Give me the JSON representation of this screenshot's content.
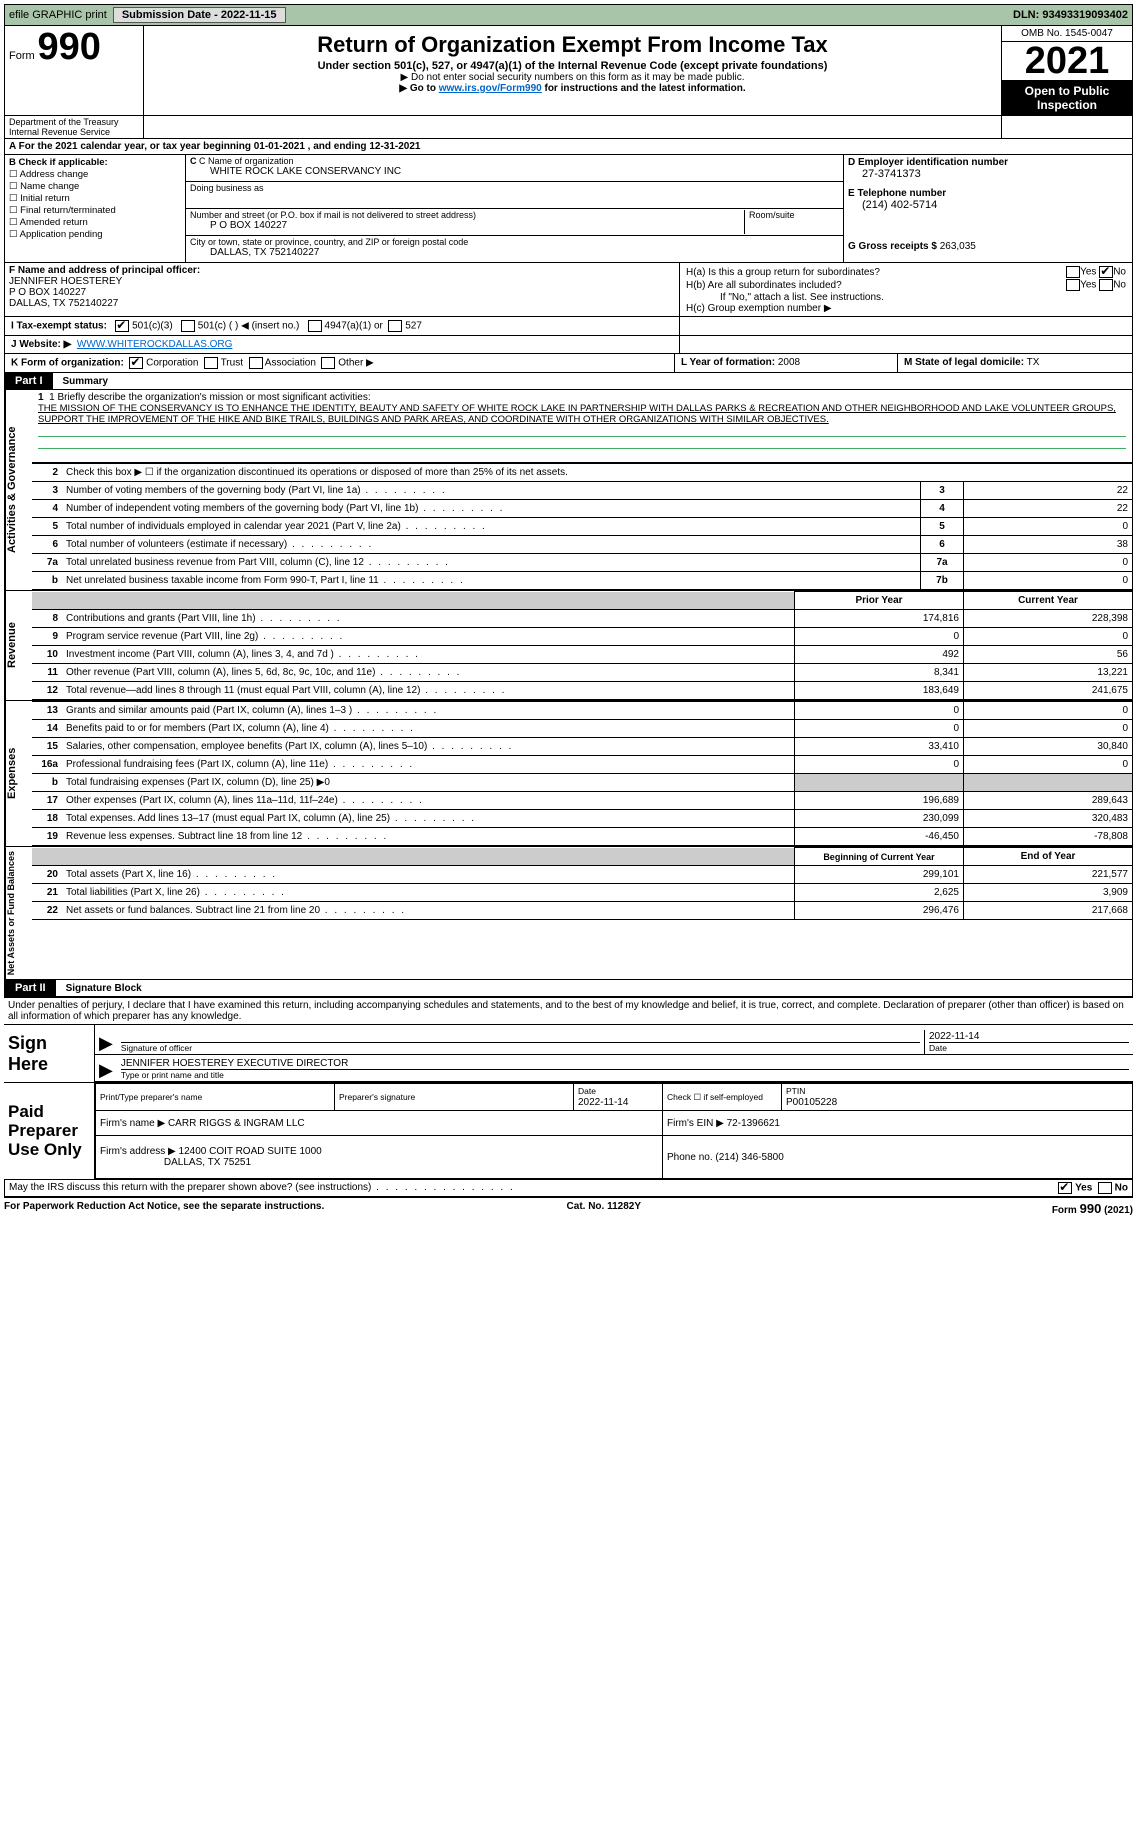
{
  "topbar": {
    "efile": "efile GRAPHIC print",
    "submission": "Submission Date - 2022-11-15",
    "dln": "DLN: 93493319093402"
  },
  "header": {
    "form_prefix": "Form",
    "form_no": "990",
    "title": "Return of Organization Exempt From Income Tax",
    "subtitle": "Under section 501(c), 527, or 4947(a)(1) of the Internal Revenue Code (except private foundations)",
    "warn": "▶ Do not enter social security numbers on this form as it may be made public.",
    "goto_pre": "▶ Go to ",
    "goto_link": "www.irs.gov/Form990",
    "goto_post": " for instructions and the latest information.",
    "omb": "OMB No. 1545-0047",
    "year": "2021",
    "inspection": "Open to Public Inspection",
    "dept": "Department of the Treasury Internal Revenue Service"
  },
  "period": "A For the 2021 calendar year, or tax year beginning 01-01-2021    , and ending 12-31-2021",
  "colB": {
    "label": "B Check if applicable:",
    "opts": [
      "☐ Address change",
      "☐ Name change",
      "☐ Initial return",
      "☐ Final return/terminated",
      "☐ Amended return",
      "☐ Application pending"
    ]
  },
  "colC": {
    "name_lbl": "C Name of organization",
    "name": "WHITE ROCK LAKE CONSERVANCY INC",
    "dba_lbl": "Doing business as",
    "dba": "",
    "street_lbl": "Number and street (or P.O. box if mail is not delivered to street address)",
    "room_lbl": "Room/suite",
    "street": "P O BOX 140227",
    "city_lbl": "City or town, state or province, country, and ZIP or foreign postal code",
    "city": "DALLAS, TX  752140227"
  },
  "colD": {
    "ein_lbl": "D Employer identification number",
    "ein": "27-3741373",
    "tel_lbl": "E Telephone number",
    "tel": "(214) 402-5714",
    "gross_lbl": "G Gross receipts $",
    "gross": "263,035"
  },
  "rowF": {
    "lbl": "F  Name and address of principal officer:",
    "name": "JENNIFER HOESTEREY",
    "addr1": "P O BOX 140227",
    "addr2": "DALLAS, TX  752140227"
  },
  "rowH": {
    "a": "H(a)  Is this a group return for subordinates?",
    "a_yes": "Yes",
    "a_no": "No",
    "b": "H(b)  Are all subordinates included?",
    "b_yes": "Yes",
    "b_no": "No",
    "b_note": "If \"No,\" attach a list. See instructions.",
    "c": "H(c)  Group exemption number ▶"
  },
  "rowI": {
    "lbl": "I   Tax-exempt status:",
    "o1": "501(c)(3)",
    "o2": "501(c) (   ) ◀ (insert no.)",
    "o3": "4947(a)(1) or",
    "o4": "527"
  },
  "rowJ": {
    "lbl": "J   Website: ▶",
    "val": "WWW.WHITEROCKDALLAS.ORG"
  },
  "rowK": {
    "lbl": "K Form of organization:",
    "o1": "Corporation",
    "o2": "Trust",
    "o3": "Association",
    "o4": "Other ▶"
  },
  "rowL": {
    "lbl": "L Year of formation:",
    "val": "2008"
  },
  "rowM": {
    "lbl": "M State of legal domicile:",
    "val": "TX"
  },
  "part1": {
    "hdr": "Part I",
    "title": "Summary",
    "vtab1": "Activities & Governance",
    "vtab2": "Revenue",
    "vtab3": "Expenses",
    "vtab4": "Net Assets or Fund Balances",
    "l1_lbl": "1  Briefly describe the organization's mission or most significant activities:",
    "l1_text": "THE MISSION OF THE CONSERVANCY IS TO ENHANCE THE IDENTITY, BEAUTY AND SAFETY OF WHITE ROCK LAKE IN PARTNERSHIP WITH DALLAS PARKS & RECREATION AND OTHER NEIGHBORHOOD AND LAKE VOLUNTEER GROUPS, SUPPORT THE IMPROVEMENT OF THE HIKE AND BIKE TRAILS, BUILDINGS AND PARK AREAS, AND COORDINATE WITH OTHER ORGANIZATIONS WITH SIMILAR OBJECTIVES.",
    "l2": "Check this box ▶ ☐  if the organization discontinued its operations or disposed of more than 25% of its net assets.",
    "rows_ag": [
      {
        "n": "3",
        "d": "Number of voting members of the governing body (Part VI, line 1a)",
        "box": "3",
        "v": "22"
      },
      {
        "n": "4",
        "d": "Number of independent voting members of the governing body (Part VI, line 1b)",
        "box": "4",
        "v": "22"
      },
      {
        "n": "5",
        "d": "Total number of individuals employed in calendar year 2021 (Part V, line 2a)",
        "box": "5",
        "v": "0"
      },
      {
        "n": "6",
        "d": "Total number of volunteers (estimate if necessary)",
        "box": "6",
        "v": "38"
      },
      {
        "n": "7a",
        "d": "Total unrelated business revenue from Part VIII, column (C), line 12",
        "box": "7a",
        "v": "0"
      },
      {
        "n": "b",
        "d": "Net unrelated business taxable income from Form 990-T, Part I, line 11",
        "box": "7b",
        "v": "0"
      }
    ],
    "hdr_prior": "Prior Year",
    "hdr_curr": "Current Year",
    "rows_rev": [
      {
        "n": "8",
        "d": "Contributions and grants (Part VIII, line 1h)",
        "p": "174,816",
        "c": "228,398"
      },
      {
        "n": "9",
        "d": "Program service revenue (Part VIII, line 2g)",
        "p": "0",
        "c": "0"
      },
      {
        "n": "10",
        "d": "Investment income (Part VIII, column (A), lines 3, 4, and 7d )",
        "p": "492",
        "c": "56"
      },
      {
        "n": "11",
        "d": "Other revenue (Part VIII, column (A), lines 5, 6d, 8c, 9c, 10c, and 11e)",
        "p": "8,341",
        "c": "13,221"
      },
      {
        "n": "12",
        "d": "Total revenue—add lines 8 through 11 (must equal Part VIII, column (A), line 12)",
        "p": "183,649",
        "c": "241,675"
      }
    ],
    "rows_exp": [
      {
        "n": "13",
        "d": "Grants and similar amounts paid (Part IX, column (A), lines 1–3 )",
        "p": "0",
        "c": "0"
      },
      {
        "n": "14",
        "d": "Benefits paid to or for members (Part IX, column (A), line 4)",
        "p": "0",
        "c": "0"
      },
      {
        "n": "15",
        "d": "Salaries, other compensation, employee benefits (Part IX, column (A), lines 5–10)",
        "p": "33,410",
        "c": "30,840"
      },
      {
        "n": "16a",
        "d": "Professional fundraising fees (Part IX, column (A), line 11e)",
        "p": "0",
        "c": "0"
      },
      {
        "n": "b",
        "d": "Total fundraising expenses (Part IX, column (D), line 25) ▶0",
        "p": "",
        "c": "",
        "shade": true
      },
      {
        "n": "17",
        "d": "Other expenses (Part IX, column (A), lines 11a–11d, 11f–24e)",
        "p": "196,689",
        "c": "289,643"
      },
      {
        "n": "18",
        "d": "Total expenses. Add lines 13–17 (must equal Part IX, column (A), line 25)",
        "p": "230,099",
        "c": "320,483"
      },
      {
        "n": "19",
        "d": "Revenue less expenses. Subtract line 18 from line 12",
        "p": "-46,450",
        "c": "-78,808"
      }
    ],
    "hdr_begin": "Beginning of Current Year",
    "hdr_end": "End of Year",
    "rows_net": [
      {
        "n": "20",
        "d": "Total assets (Part X, line 16)",
        "p": "299,101",
        "c": "221,577"
      },
      {
        "n": "21",
        "d": "Total liabilities (Part X, line 26)",
        "p": "2,625",
        "c": "3,909"
      },
      {
        "n": "22",
        "d": "Net assets or fund balances. Subtract line 21 from line 20",
        "p": "296,476",
        "c": "217,668"
      }
    ]
  },
  "part2": {
    "hdr": "Part II",
    "title": "Signature Block",
    "decl": "Under penalties of perjury, I declare that I have examined this return, including accompanying schedules and statements, and to the best of my knowledge and belief, it is true, correct, and complete. Declaration of preparer (other than officer) is based on all information of which preparer has any knowledge.",
    "sign_here": "Sign Here",
    "sig_date": "2022-11-14",
    "sig_lbl1": "Signature of officer",
    "sig_lbl2": "Date",
    "officer": "JENNIFER HOESTEREY  EXECUTIVE DIRECTOR",
    "officer_lbl": "Type or print name and title",
    "paid": "Paid Preparer Use Only",
    "p_name_lbl": "Print/Type preparer's name",
    "p_sig_lbl": "Preparer's signature",
    "p_date_lbl": "Date",
    "p_date": "2022-11-14",
    "p_check": "Check ☐ if self-employed",
    "ptin_lbl": "PTIN",
    "ptin": "P00105228",
    "firm_name_lbl": "Firm's name    ▶",
    "firm_name": "CARR RIGGS & INGRAM LLC",
    "firm_ein_lbl": "Firm's EIN ▶",
    "firm_ein": "72-1396621",
    "firm_addr_lbl": "Firm's address ▶",
    "firm_addr1": "12400 COIT ROAD SUITE 1000",
    "firm_addr2": "DALLAS, TX  75251",
    "firm_phone_lbl": "Phone no.",
    "firm_phone": "(214) 346-5800",
    "discuss": "May the IRS discuss this return with the preparer shown above? (see instructions)",
    "yes": "Yes",
    "no": "No"
  },
  "footer": {
    "l": "For Paperwork Reduction Act Notice, see the separate instructions.",
    "c": "Cat. No. 11282Y",
    "r": "Form 990 (2021)"
  }
}
